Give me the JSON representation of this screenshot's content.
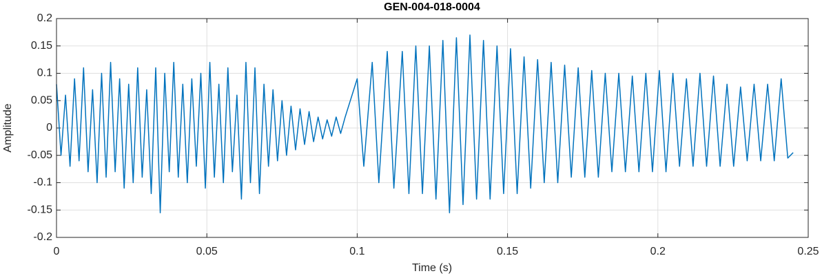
{
  "chart_data": {
    "type": "line",
    "title": "GEN-004-018-0004",
    "x_label": "Time (s)",
    "y_label": "Amplitude",
    "xlim": [
      0,
      0.25
    ],
    "xticks": [
      0,
      0.05,
      0.1,
      0.15,
      0.2,
      0.25
    ],
    "ylim": [
      -0.2,
      0.2
    ],
    "yticks": [
      -0.2,
      -0.15,
      -0.1,
      -0.05,
      0,
      0.05,
      0.1,
      0.15,
      0.2
    ],
    "grid": true,
    "x": [
      0,
      0.0015,
      0.003,
      0.0045,
      0.006,
      0.0075,
      0.009,
      0.0105,
      0.012,
      0.0135,
      0.015,
      0.0165,
      0.018,
      0.0195,
      0.021,
      0.0225,
      0.024,
      0.0255,
      0.027,
      0.0285,
      0.03,
      0.0315,
      0.033,
      0.0345,
      0.036,
      0.0375,
      0.039,
      0.0405,
      0.042,
      0.0435,
      0.045,
      0.0465,
      0.048,
      0.0495,
      0.051,
      0.0525,
      0.054,
      0.0555,
      0.057,
      0.0585,
      0.06,
      0.0615,
      0.063,
      0.0645,
      0.066,
      0.0675,
      0.069,
      0.0705,
      0.072,
      0.0735,
      0.075,
      0.0765,
      0.078,
      0.0795,
      0.081,
      0.0825,
      0.084,
      0.0855,
      0.087,
      0.0885,
      0.09,
      0.0915,
      0.093,
      0.0945,
      0.096,
      0.1,
      0.1022,
      0.105,
      0.1072,
      0.11,
      0.1122,
      0.115,
      0.1172,
      0.1195,
      0.1217,
      0.124,
      0.1262,
      0.1285,
      0.1307,
      0.133,
      0.1352,
      0.1375,
      0.1397,
      0.142,
      0.1442,
      0.1465,
      0.1487,
      0.151,
      0.1532,
      0.1555,
      0.1577,
      0.16,
      0.1622,
      0.1645,
      0.1667,
      0.169,
      0.1712,
      0.1735,
      0.1757,
      0.178,
      0.1802,
      0.1825,
      0.1847,
      0.187,
      0.1892,
      0.1915,
      0.1937,
      0.196,
      0.1982,
      0.2005,
      0.2027,
      0.205,
      0.2072,
      0.2095,
      0.2117,
      0.214,
      0.2162,
      0.2185,
      0.2207,
      0.223,
      0.2252,
      0.2275,
      0.2297,
      0.232,
      0.2342,
      0.2365,
      0.2387,
      0.241,
      0.2432,
      0.245
    ],
    "series": [
      {
        "color": "#0072bd",
        "values": [
          0.08,
          -0.05,
          0.06,
          -0.07,
          0.09,
          -0.06,
          0.11,
          -0.08,
          0.07,
          -0.1,
          0.1,
          -0.09,
          0.12,
          -0.08,
          0.09,
          -0.11,
          0.08,
          -0.1,
          0.11,
          -0.09,
          0.07,
          -0.12,
          0.11,
          -0.155,
          0.1,
          -0.08,
          0.12,
          -0.09,
          0.08,
          -0.1,
          0.09,
          -0.07,
          0.1,
          -0.11,
          0.12,
          -0.09,
          0.08,
          -0.1,
          0.11,
          -0.08,
          0.06,
          -0.13,
          0.12,
          -0.1,
          0.11,
          -0.12,
          0.08,
          -0.07,
          0.07,
          -0.06,
          0.05,
          -0.05,
          0.04,
          -0.04,
          0.035,
          -0.03,
          0.03,
          -0.025,
          0.02,
          -0.02,
          0.015,
          -0.015,
          0.02,
          -0.01,
          0.02,
          0.09,
          -0.07,
          0.12,
          -0.1,
          0.14,
          -0.11,
          0.14,
          -0.12,
          0.15,
          -0.12,
          0.15,
          -0.13,
          0.16,
          -0.155,
          0.165,
          -0.14,
          0.17,
          -0.13,
          0.16,
          -0.13,
          0.15,
          -0.12,
          0.145,
          -0.12,
          0.13,
          -0.11,
          0.125,
          -0.1,
          0.12,
          -0.1,
          0.115,
          -0.09,
          0.11,
          -0.09,
          0.105,
          -0.09,
          0.1,
          -0.08,
          0.1,
          -0.08,
          0.095,
          -0.08,
          0.1,
          -0.08,
          0.105,
          -0.08,
          0.1,
          -0.07,
          0.09,
          -0.07,
          0.1,
          -0.07,
          0.095,
          -0.07,
          0.08,
          -0.07,
          0.075,
          -0.06,
          0.08,
          -0.06,
          0.08,
          -0.06,
          0.09,
          -0.055,
          -0.045
        ]
      }
    ]
  }
}
